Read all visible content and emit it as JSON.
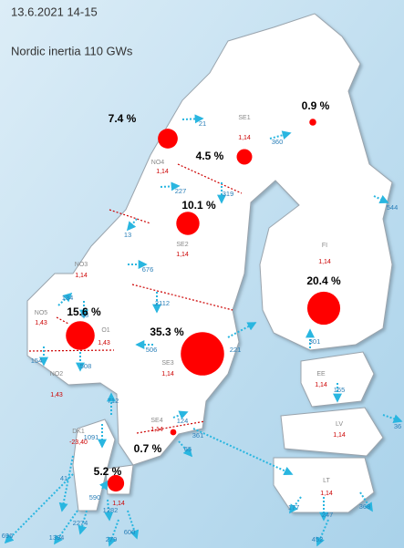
{
  "title": "13.6.2021 14-15",
  "subtitle": "Nordic inertia 110 GWs",
  "areas": [
    {
      "name": "SE1",
      "price": "1,14"
    },
    {
      "name": "NO4",
      "price": "1,14"
    },
    {
      "name": "SE2",
      "price": "1,14"
    },
    {
      "name": "NO3",
      "price": "1,14"
    },
    {
      "name": "FI",
      "price": "1,14"
    },
    {
      "name": "NO5",
      "price": "1,43"
    },
    {
      "name": "O1",
      "price": "1,43"
    },
    {
      "name": "SE3",
      "price": "1,14"
    },
    {
      "name": "NO2",
      "price": "1,43"
    },
    {
      "name": "EE",
      "price": "1,14"
    },
    {
      "name": "LV",
      "price": "1,14"
    },
    {
      "name": "SE4",
      "price": "1,14"
    },
    {
      "name": "DK1",
      "price": "-23,40"
    },
    {
      "name": "LT",
      "price": "1,14"
    }
  ],
  "dk2_price": "1,14",
  "shares": {
    "values": [
      7.4,
      4.5,
      0.9,
      10.1,
      20.4,
      15.6,
      35.3,
      5.2,
      0.7
    ],
    "value_labels": [
      "7.4 %",
      "4.5 %",
      "0.9 %",
      "10.1 %",
      "20.4 %",
      "15.6 %",
      "35.3 %",
      "5.2 %",
      "0.7 %"
    ],
    "color": "#ff0000"
  },
  "flows": [
    21,
    360,
    227,
    319,
    544,
    13,
    676,
    2112,
    134,
    68,
    154,
    508,
    506,
    221,
    301,
    165,
    36,
    1091,
    712,
    124,
    361,
    65,
    41,
    590,
    1282,
    2274,
    1394,
    279,
    600,
    177,
    368,
    452,
    696,
    247
  ]
}
